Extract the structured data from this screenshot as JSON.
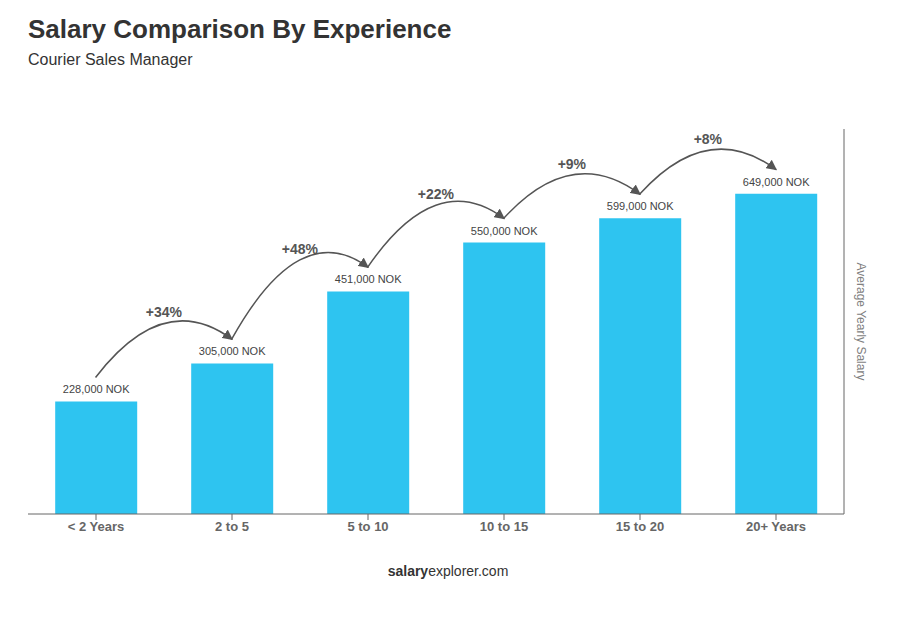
{
  "chart_data": {
    "type": "bar",
    "title": "Salary Comparison By Experience",
    "subtitle": "Courier Sales Manager",
    "categories": [
      "< 2 Years",
      "2 to 5",
      "5 to 10",
      "10 to 15",
      "15 to 20",
      "20+ Years"
    ],
    "values": [
      228000,
      305000,
      451000,
      550000,
      599000,
      649000
    ],
    "value_labels": [
      "228,000 NOK",
      "305,000 NOK",
      "451,000 NOK",
      "550,000 NOK",
      "599,000 NOK",
      "649,000 NOK"
    ],
    "data_labels": true,
    "annotations": [
      "+34%",
      "+48%",
      "+22%",
      "+9%",
      "+8%"
    ],
    "ylabel": "Average Yearly Salary",
    "footer": [
      "salary",
      "explorer.com"
    ],
    "color": "#2ec4f0",
    "ylim": [
      0,
      780000
    ],
    "tick_labels": "x",
    "grid": false
  }
}
